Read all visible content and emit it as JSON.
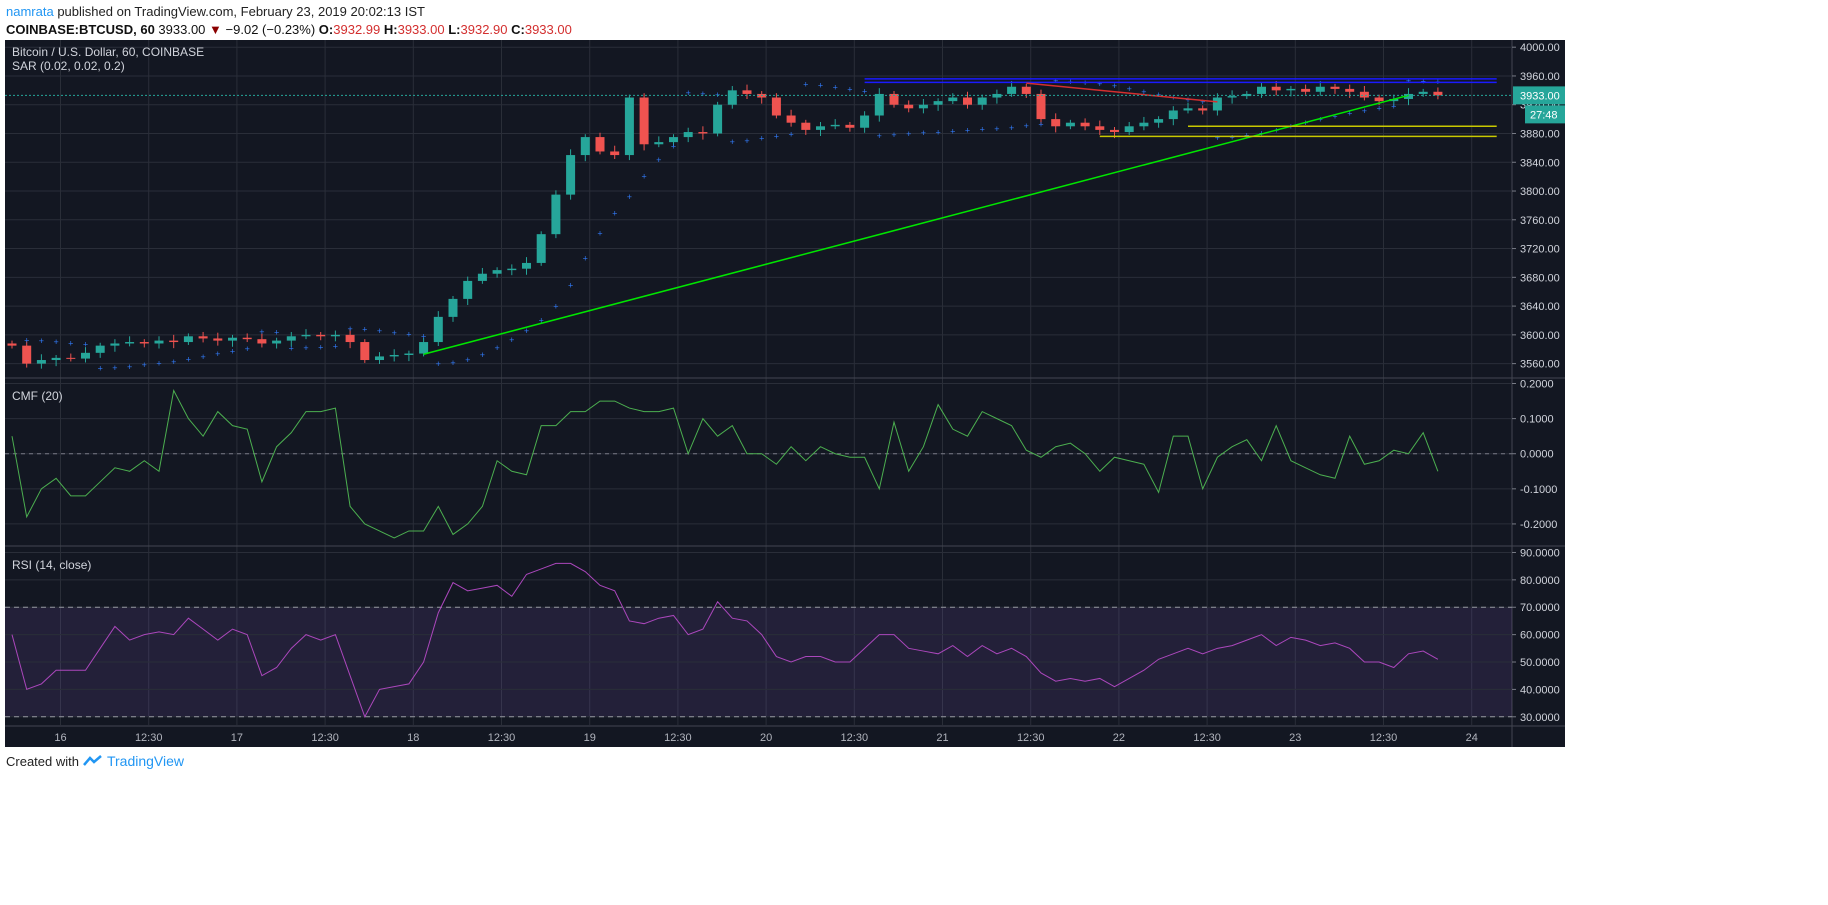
{
  "header": {
    "user": "namrata",
    "published": "published on TradingView.com, February 23, 2019 20:02:13 IST",
    "symbol": "COINBASE:BTCUSD, 60",
    "last": "3933.00",
    "change": "−9.02 (−0.23%)",
    "o_label": "O:",
    "o": "3932.99",
    "h_label": "H:",
    "h": "3933.00",
    "l_label": "L:",
    "l": "3932.90",
    "c_label": "C:",
    "c": "3933.00"
  },
  "footer": {
    "created_with": "Created with",
    "brand": "TradingView"
  },
  "colors": {
    "bg": "#131722",
    "up": "#26a69a",
    "down": "#ef5350",
    "grid": "#2a2e39",
    "cmf": "#4caf50",
    "rsi": "#ab47bc",
    "sar": "#3179f5"
  },
  "chart_data": [
    {
      "type": "candlestick",
      "title": "Bitcoin / U.S. Dollar, 60, COINBASE",
      "indicator_label": "SAR (0.02, 0.02, 0.2)",
      "ylim": [
        3540,
        4010
      ],
      "yticks": [
        3560,
        3600,
        3640,
        3680,
        3720,
        3760,
        3800,
        3840,
        3880,
        3920,
        3960,
        4000
      ],
      "current_price_label": "3933.00",
      "countdown_label": "27:48",
      "closes": [
        3585,
        3560,
        3565,
        3568,
        3567,
        3575,
        3585,
        3588,
        3590,
        3588,
        3592,
        3590,
        3598,
        3595,
        3592,
        3596,
        3594,
        3588,
        3592,
        3598,
        3600,
        3598,
        3600,
        3590,
        3565,
        3570,
        3572,
        3574,
        3590,
        3625,
        3650,
        3675,
        3685,
        3690,
        3692,
        3700,
        3740,
        3795,
        3850,
        3875,
        3855,
        3850,
        3930,
        3865,
        3868,
        3875,
        3882,
        3880,
        3920,
        3940,
        3935,
        3930,
        3905,
        3895,
        3885,
        3890,
        3892,
        3888,
        3905,
        3935,
        3920,
        3915,
        3920,
        3925,
        3930,
        3920,
        3930,
        3935,
        3945,
        3935,
        3900,
        3890,
        3895,
        3890,
        3885,
        3882,
        3890,
        3895,
        3900,
        3912,
        3915,
        3912,
        3930,
        3932,
        3935,
        3945,
        3940,
        3942,
        3938,
        3945,
        3942,
        3938,
        3930,
        3925,
        3928,
        3935,
        3938,
        3933
      ],
      "drawings": [
        {
          "kind": "trendline",
          "color": "#00e600",
          "from": [
            28,
            3573
          ],
          "to": [
            95,
            3933
          ]
        },
        {
          "kind": "horizontal",
          "color": "#1a1aff",
          "from": [
            58,
            3956
          ],
          "to": [
            101,
            3956
          ]
        },
        {
          "kind": "horizontal",
          "color": "#1a1aff",
          "from": [
            58,
            3951
          ],
          "to": [
            101,
            3951
          ]
        },
        {
          "kind": "trendline",
          "color": "#d32f2f",
          "from": [
            69,
            3950
          ],
          "to": [
            82,
            3924
          ]
        },
        {
          "kind": "horizontal",
          "color": "#c8c800",
          "from": [
            80,
            3890
          ],
          "to": [
            101,
            3890
          ]
        },
        {
          "kind": "horizontal",
          "color": "#c8c800",
          "from": [
            74,
            3876
          ],
          "to": [
            101,
            3876
          ]
        }
      ]
    },
    {
      "type": "line",
      "title": "CMF (20)",
      "ylim": [
        -0.26,
        0.21
      ],
      "yticks": [
        0.2,
        0.1,
        0.0,
        -0.1,
        -0.2
      ],
      "ytick_labels": [
        "0.2000",
        "0.1000",
        "0.0000",
        "-0.1000",
        "-0.2000"
      ],
      "values": [
        0.05,
        -0.18,
        -0.1,
        -0.07,
        -0.12,
        -0.12,
        -0.08,
        -0.04,
        -0.05,
        -0.02,
        -0.05,
        0.18,
        0.1,
        0.05,
        0.12,
        0.08,
        0.07,
        -0.08,
        0.02,
        0.06,
        0.12,
        0.12,
        0.13,
        -0.15,
        -0.2,
        -0.22,
        -0.24,
        -0.22,
        -0.22,
        -0.15,
        -0.23,
        -0.2,
        -0.15,
        -0.02,
        -0.05,
        -0.06,
        0.08,
        0.08,
        0.12,
        0.12,
        0.15,
        0.15,
        0.13,
        0.12,
        0.12,
        0.13,
        0.0,
        0.1,
        0.05,
        0.08,
        0.0,
        0.0,
        -0.03,
        0.02,
        -0.02,
        0.02,
        0.0,
        -0.01,
        -0.01,
        -0.1,
        0.09,
        -0.05,
        0.02,
        0.14,
        0.07,
        0.05,
        0.12,
        0.1,
        0.08,
        0.01,
        -0.01,
        0.02,
        0.03,
        0.0,
        -0.05,
        -0.01,
        -0.02,
        -0.03,
        -0.11,
        0.05,
        0.05,
        -0.1,
        -0.01,
        0.02,
        0.04,
        -0.02,
        0.08,
        -0.02,
        -0.04,
        -0.06,
        -0.07,
        0.05,
        -0.03,
        -0.02,
        0.01,
        0.0,
        0.06,
        -0.05
      ]
    },
    {
      "type": "line",
      "title": "RSI (14, close)",
      "ylim": [
        27,
        92
      ],
      "yticks": [
        90,
        80,
        70,
        60,
        50,
        40,
        30
      ],
      "ytick_labels": [
        "90.0000",
        "80.0000",
        "70.0000",
        "60.0000",
        "50.0000",
        "40.0000",
        "30.0000"
      ],
      "bands": [
        30,
        70
      ],
      "values": [
        60,
        40,
        42,
        47,
        47,
        47,
        55,
        63,
        58,
        60,
        61,
        60,
        66,
        62,
        58,
        62,
        60,
        45,
        48,
        55,
        60,
        58,
        60,
        45,
        30,
        40,
        41,
        42,
        50,
        68,
        79,
        76,
        77,
        78,
        74,
        82,
        84,
        86,
        86,
        83,
        78,
        76,
        65,
        64,
        66,
        67,
        60,
        62,
        72,
        66,
        65,
        60,
        52,
        50,
        52,
        52,
        50,
        50,
        55,
        60,
        60,
        55,
        54,
        53,
        56,
        52,
        56,
        53,
        55,
        52,
        46,
        43,
        44,
        43,
        44,
        41,
        44,
        47,
        51,
        53,
        55,
        53,
        55,
        56,
        58,
        60,
        56,
        59,
        58,
        56,
        57,
        55,
        50,
        50,
        48,
        53,
        54,
        51
      ]
    }
  ],
  "time_axis": {
    "labels": [
      "16",
      "12:30",
      "17",
      "12:30",
      "18",
      "12:30",
      "19",
      "12:30",
      "20",
      "12:30",
      "21",
      "12:30",
      "22",
      "12:30",
      "23",
      "12:30",
      "24"
    ],
    "first_label_bar": 3.3,
    "bars_per_label": 6
  }
}
